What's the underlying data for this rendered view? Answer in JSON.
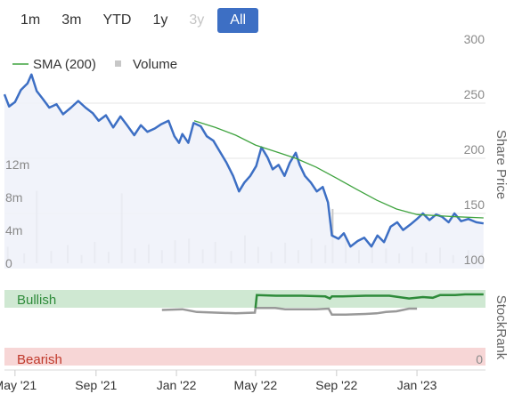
{
  "range_selector": [
    {
      "label": "1m",
      "state": "normal"
    },
    {
      "label": "3m",
      "state": "normal"
    },
    {
      "label": "YTD",
      "state": "normal"
    },
    {
      "label": "1y",
      "state": "normal"
    },
    {
      "label": "3y",
      "state": "disabled"
    },
    {
      "label": "All",
      "state": "active"
    }
  ],
  "colors": {
    "price": "#3d6fc4",
    "price_fill": "#eef1f9",
    "sma": "#3fa33f",
    "volume": "#c7c7c7",
    "bullish": "#2e8b3a",
    "bullish_band": "#cfe8d2",
    "bearish_band": "#f7d6d6",
    "bearish_text": "#c0392b",
    "stockrank_pre": "#999999"
  },
  "chart_data": {
    "type": "line",
    "legend": {
      "sma_label": "SMA (200)",
      "volume_label": "Volume"
    },
    "y_axis_title": "Share Price",
    "y_ticks": [
      "300",
      "250",
      "200",
      "150",
      "100"
    ],
    "ylim": [
      100,
      300
    ],
    "volume_ticks": [
      "12m",
      "8m",
      "4m",
      "0"
    ],
    "volume_lim": [
      0,
      12
    ],
    "x_ticks": [
      {
        "label": "May '21",
        "date": "2021-05-01"
      },
      {
        "label": "Sep '21",
        "date": "2021-09-01"
      },
      {
        "label": "Jan '22",
        "date": "2022-01-01"
      },
      {
        "label": "May '22",
        "date": "2022-05-01"
      },
      {
        "label": "Sep '22",
        "date": "2022-09-01"
      },
      {
        "label": "Jan '23",
        "date": "2023-01-01"
      }
    ],
    "x_range": [
      "2021-04-15",
      "2023-04-15"
    ],
    "price_series": [
      [
        "2021-04-15",
        258
      ],
      [
        "2021-04-22",
        247
      ],
      [
        "2021-05-01",
        251
      ],
      [
        "2021-05-10",
        262
      ],
      [
        "2021-05-20",
        268
      ],
      [
        "2021-05-26",
        276
      ],
      [
        "2021-06-03",
        261
      ],
      [
        "2021-06-12",
        254
      ],
      [
        "2021-06-22",
        246
      ],
      [
        "2021-07-03",
        249
      ],
      [
        "2021-07-13",
        240
      ],
      [
        "2021-07-25",
        246
      ],
      [
        "2021-08-05",
        252
      ],
      [
        "2021-08-16",
        246
      ],
      [
        "2021-08-27",
        241
      ],
      [
        "2021-09-05",
        234
      ],
      [
        "2021-09-16",
        239
      ],
      [
        "2021-09-27",
        228
      ],
      [
        "2021-10-08",
        238
      ],
      [
        "2021-10-18",
        230
      ],
      [
        "2021-10-29",
        221
      ],
      [
        "2021-11-08",
        230
      ],
      [
        "2021-11-18",
        224
      ],
      [
        "2021-11-29",
        227
      ],
      [
        "2021-12-09",
        231
      ],
      [
        "2021-12-20",
        234
      ],
      [
        "2021-12-29",
        220
      ],
      [
        "2022-01-05",
        214
      ],
      [
        "2022-01-10",
        222
      ],
      [
        "2022-01-19",
        214
      ],
      [
        "2022-01-27",
        232
      ],
      [
        "2022-02-07",
        229
      ],
      [
        "2022-02-16",
        220
      ],
      [
        "2022-02-26",
        216
      ],
      [
        "2022-03-08",
        206
      ],
      [
        "2022-03-18",
        196
      ],
      [
        "2022-03-28",
        184
      ],
      [
        "2022-04-06",
        170
      ],
      [
        "2022-04-14",
        178
      ],
      [
        "2022-04-23",
        184
      ],
      [
        "2022-05-02",
        193
      ],
      [
        "2022-05-10",
        210
      ],
      [
        "2022-05-19",
        201
      ],
      [
        "2022-05-27",
        190
      ],
      [
        "2022-06-05",
        194
      ],
      [
        "2022-06-14",
        184
      ],
      [
        "2022-06-22",
        196
      ],
      [
        "2022-07-01",
        205
      ],
      [
        "2022-07-07",
        194
      ],
      [
        "2022-07-15",
        184
      ],
      [
        "2022-07-24",
        178
      ],
      [
        "2022-08-02",
        170
      ],
      [
        "2022-08-11",
        174
      ],
      [
        "2022-08-19",
        160
      ],
      [
        "2022-08-25",
        130
      ],
      [
        "2022-09-04",
        127
      ],
      [
        "2022-09-12",
        132
      ],
      [
        "2022-09-22",
        120
      ],
      [
        "2022-10-03",
        125
      ],
      [
        "2022-10-13",
        128
      ],
      [
        "2022-10-24",
        120
      ],
      [
        "2022-11-02",
        130
      ],
      [
        "2022-11-12",
        124
      ],
      [
        "2022-11-22",
        138
      ],
      [
        "2022-12-02",
        142
      ],
      [
        "2022-12-11",
        135
      ],
      [
        "2022-12-22",
        140
      ],
      [
        "2023-01-01",
        145
      ],
      [
        "2023-01-10",
        150
      ],
      [
        "2023-01-20",
        144
      ],
      [
        "2023-01-30",
        149
      ],
      [
        "2023-02-08",
        147
      ],
      [
        "2023-02-18",
        142
      ],
      [
        "2023-02-27",
        150
      ],
      [
        "2023-03-09",
        143
      ],
      [
        "2023-03-20",
        145
      ],
      [
        "2023-04-01",
        142
      ],
      [
        "2023-04-12",
        141
      ]
    ],
    "sma_series": [
      [
        "2022-01-28",
        234
      ],
      [
        "2022-03-01",
        228
      ],
      [
        "2022-04-01",
        221
      ],
      [
        "2022-05-01",
        212
      ],
      [
        "2022-06-01",
        206
      ],
      [
        "2022-07-01",
        200
      ],
      [
        "2022-08-01",
        192
      ],
      [
        "2022-09-01",
        182
      ],
      [
        "2022-10-01",
        172
      ],
      [
        "2022-11-01",
        162
      ],
      [
        "2022-12-01",
        154
      ],
      [
        "2023-01-01",
        149
      ],
      [
        "2023-02-01",
        148
      ],
      [
        "2023-03-01",
        147
      ],
      [
        "2023-04-12",
        146
      ]
    ],
    "volume_series": [
      [
        "2021-04-20",
        2.0
      ],
      [
        "2021-05-15",
        1.2
      ],
      [
        "2021-06-03",
        8.8
      ],
      [
        "2021-06-25",
        1.5
      ],
      [
        "2021-07-20",
        2.2
      ],
      [
        "2021-08-10",
        1.0
      ],
      [
        "2021-08-30",
        2.6
      ],
      [
        "2021-09-20",
        1.4
      ],
      [
        "2021-10-10",
        8.5
      ],
      [
        "2021-10-30",
        1.8
      ],
      [
        "2021-11-20",
        2.3
      ],
      [
        "2021-12-10",
        1.6
      ],
      [
        "2021-12-30",
        2.8
      ],
      [
        "2022-01-20",
        3.0
      ],
      [
        "2022-02-10",
        1.7
      ],
      [
        "2022-03-01",
        2.6
      ],
      [
        "2022-03-25",
        1.5
      ],
      [
        "2022-04-15",
        3.4
      ],
      [
        "2022-05-05",
        2.0
      ],
      [
        "2022-05-25",
        1.4
      ],
      [
        "2022-06-15",
        2.5
      ],
      [
        "2022-07-05",
        1.6
      ],
      [
        "2022-07-25",
        3.0
      ],
      [
        "2022-08-15",
        2.2
      ],
      [
        "2022-08-26",
        6.6
      ],
      [
        "2022-09-15",
        2.8
      ],
      [
        "2022-10-05",
        1.6
      ],
      [
        "2022-10-25",
        2.4
      ],
      [
        "2022-11-15",
        1.8
      ],
      [
        "2022-12-05",
        1.2
      ],
      [
        "2022-12-25",
        2.0
      ],
      [
        "2023-01-15",
        1.3
      ],
      [
        "2023-02-05",
        1.9
      ],
      [
        "2023-02-25",
        1.0
      ],
      [
        "2023-03-20",
        1.6
      ],
      [
        "2023-04-10",
        1.2
      ]
    ],
    "stockrank": {
      "top_label": "Bullish",
      "bottom_label": "Bearish",
      "bottom_value": "0",
      "axis_title": "StockRank",
      "range": [
        0,
        100
      ],
      "pre_series": [
        [
          "2021-12-10",
          77
        ],
        [
          "2022-01-10",
          78
        ],
        [
          "2022-02-01",
          74
        ],
        [
          "2022-03-01",
          73
        ],
        [
          "2022-04-01",
          72
        ],
        [
          "2022-04-30",
          73
        ],
        [
          "2022-05-01",
          80
        ],
        [
          "2022-05-31",
          80
        ],
        [
          "2022-06-15",
          78
        ],
        [
          "2022-08-01",
          78
        ],
        [
          "2022-08-20",
          79
        ],
        [
          "2022-08-25",
          70
        ],
        [
          "2022-09-15",
          70
        ],
        [
          "2022-10-15",
          71
        ],
        [
          "2022-11-01",
          72
        ],
        [
          "2022-11-15",
          74
        ],
        [
          "2022-12-01",
          75
        ],
        [
          "2022-12-20",
          79
        ],
        [
          "2023-01-01",
          79
        ]
      ],
      "bullish_series": [
        [
          "2022-05-01",
          80
        ],
        [
          "2022-05-03",
          99
        ],
        [
          "2022-06-01",
          98
        ],
        [
          "2022-07-10",
          98
        ],
        [
          "2022-08-15",
          97
        ],
        [
          "2022-08-22",
          94
        ],
        [
          "2022-08-25",
          97
        ],
        [
          "2022-09-10",
          97
        ],
        [
          "2022-10-15",
          98
        ],
        [
          "2022-11-20",
          98
        ],
        [
          "2022-12-20",
          94
        ],
        [
          "2023-01-10",
          96
        ],
        [
          "2023-01-25",
          95
        ],
        [
          "2023-02-05",
          99
        ],
        [
          "2023-02-28",
          99
        ],
        [
          "2023-03-15",
          100
        ],
        [
          "2023-04-12",
          100
        ]
      ]
    }
  }
}
